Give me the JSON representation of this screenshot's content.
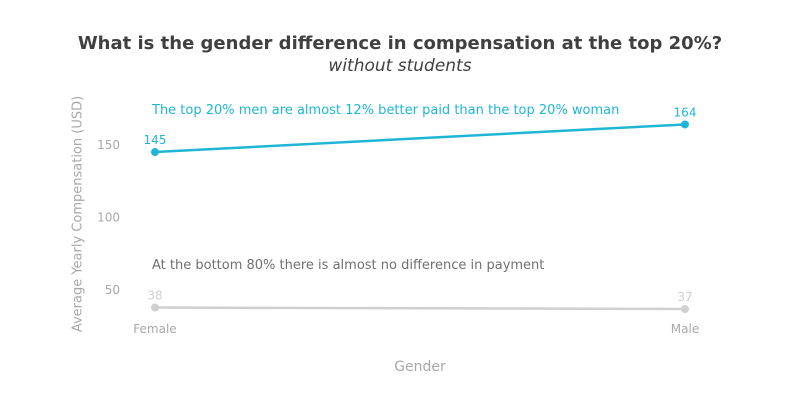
{
  "chart_data": {
    "type": "line",
    "title": "What is the gender difference in compensation at the top 20%?",
    "subtitle": "without students",
    "xlabel": "Gender",
    "ylabel": "Average Yearly Compensation (USD)",
    "categories": [
      "Female",
      "Male"
    ],
    "y_ticks": [
      50,
      100,
      150
    ],
    "ylim": [
      26,
      176
    ],
    "grid": false,
    "series": [
      {
        "name": "top 20%",
        "values": [
          145,
          164
        ],
        "color": "#1fb6d6"
      },
      {
        "name": "bottom 80%",
        "values": [
          38,
          37
        ],
        "color": "#d0d0d0"
      }
    ],
    "annotations": [
      {
        "text": "The top 20% men are almost 12% better paid than the top 20% woman",
        "color": "#1fb6d6"
      },
      {
        "text": "At the bottom 80% there is almost no difference in payment",
        "color": "#707070"
      }
    ]
  }
}
